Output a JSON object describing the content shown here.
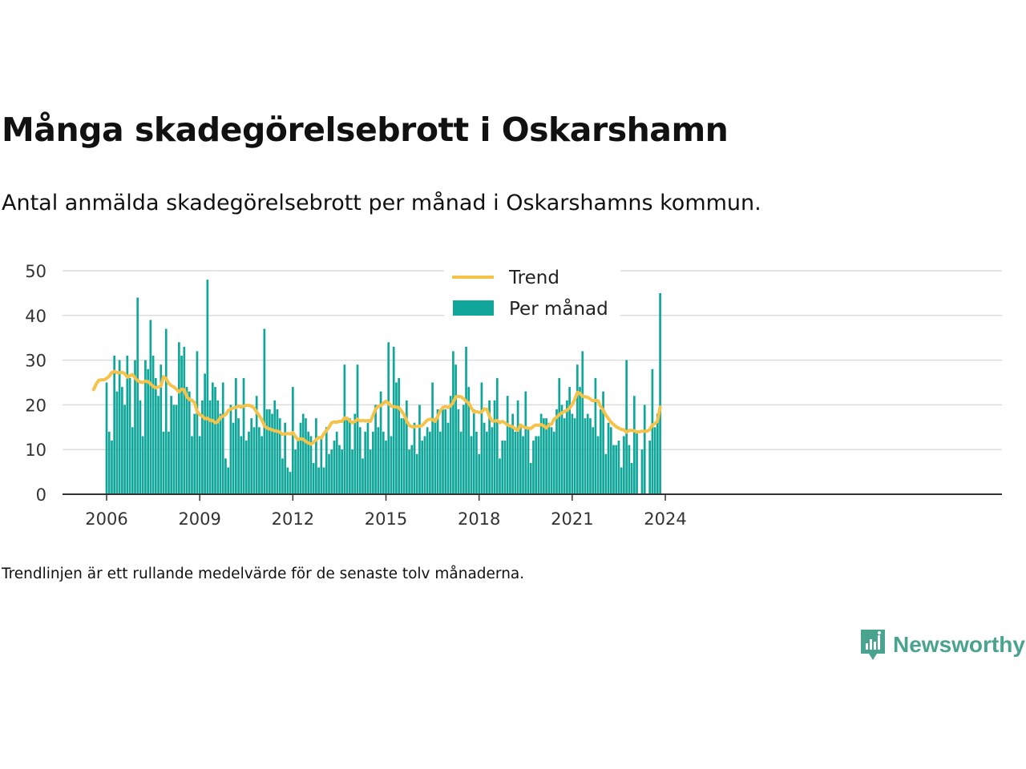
{
  "title": "Många skadegörelsebrott i Oskarshamn",
  "subtitle": "Antal anmälda skadegörelsebrott per månad i Oskarshamns kommun.",
  "note": "Trendlinjen är ett rullande medelvärde för de senaste tolv månaderna.",
  "brand": {
    "name": "Newsworthy",
    "color": "#4aa38f",
    "icon": "newsworthy-logo-icon"
  },
  "colors": {
    "bars": "#10a79a",
    "trend": "#f5c24a",
    "grid": "#dcdcdc",
    "axis": "#333333"
  },
  "chart_data": {
    "type": "bar",
    "x_start": "2006-01",
    "x_frequency": "monthly",
    "ylim": [
      0,
      50
    ],
    "yticks": [
      0,
      10,
      20,
      30,
      40,
      50
    ],
    "xticks": [
      "2006",
      "2009",
      "2012",
      "2015",
      "2018",
      "2021",
      "2024"
    ],
    "grid": true,
    "legend_position": "top-center",
    "series": [
      {
        "name": "Per månad",
        "type": "bar",
        "values": [
          25,
          14,
          12,
          31,
          23,
          30,
          24,
          20,
          31,
          26,
          15,
          30,
          44,
          21,
          13,
          30,
          28,
          39,
          31,
          26,
          22,
          29,
          14,
          37,
          14,
          22,
          20,
          20,
          34,
          31,
          33,
          24,
          23,
          13,
          18,
          32,
          13,
          21,
          27,
          48,
          21,
          25,
          24,
          21,
          18,
          25,
          8,
          6,
          20,
          16,
          26,
          17,
          13,
          26,
          12,
          14,
          17,
          15,
          22,
          15,
          13,
          37,
          19,
          19,
          18,
          21,
          19,
          17,
          8,
          16,
          6,
          5,
          24,
          10,
          12,
          16,
          18,
          17,
          14,
          13,
          7,
          17,
          6,
          13,
          6,
          15,
          9,
          10,
          12,
          14,
          11,
          10,
          29,
          17,
          17,
          10,
          18,
          29,
          15,
          8,
          14,
          16,
          10,
          14,
          20,
          15,
          23,
          14,
          12,
          34,
          13,
          33,
          25,
          26,
          17,
          17,
          21,
          10,
          11,
          16,
          9,
          20,
          12,
          13,
          15,
          14,
          25,
          17,
          19,
          14,
          19,
          19,
          16,
          22,
          32,
          29,
          19,
          14,
          20,
          33,
          24,
          13,
          19,
          14,
          9,
          25,
          16,
          14,
          21,
          15,
          21,
          26,
          8,
          12,
          12,
          22,
          15,
          18,
          14,
          21,
          15,
          13,
          23,
          15,
          7,
          12,
          13,
          13,
          18,
          17,
          17,
          16,
          15,
          14,
          19,
          26,
          20,
          17,
          21,
          24,
          18,
          17,
          29,
          24,
          32,
          17,
          18,
          17,
          15,
          26,
          13,
          19,
          23,
          9,
          16,
          15,
          11,
          11,
          12,
          6,
          13,
          30,
          11,
          7,
          22,
          14,
          0,
          10,
          20,
          0,
          12,
          28,
          15,
          18,
          45
        ]
      },
      {
        "name": "Trend",
        "type": "line",
        "values": [
          23.4,
          24.7,
          25.5,
          25.6,
          25.6,
          25.9,
          26.4,
          27.2,
          27.5,
          27.2,
          27.2,
          27.3,
          27.0,
          26.2,
          26.5,
          26.8,
          26.0,
          25.4,
          25.1,
          25.0,
          25.3,
          25.2,
          24.7,
          24.1,
          23.8,
          24.0,
          24.2,
          26.3,
          25.9,
          24.8,
          24.3,
          24.0,
          23.5,
          22.9,
          23.5,
          23.4,
          21.8,
          21.2,
          21.0,
          20.5,
          18.5,
          17.8,
          17.5,
          16.9,
          17.0,
          16.5,
          16.5,
          16.0,
          16.2,
          17.2,
          17.5,
          17.8,
          18.7,
          19.1,
          19.3,
          19.4,
          19.8,
          19.5,
          19.7,
          19.9,
          19.9,
          19.7,
          19.3,
          18.4,
          17.6,
          16.7,
          15.3,
          14.8,
          14.6,
          14.4,
          14.2,
          14.1,
          13.9,
          13.4,
          13.5,
          13.6,
          13.5,
          13.8,
          12.9,
          12.2,
          12.4,
          12.3,
          11.8,
          11.5,
          11.2,
          11.6,
          12.2,
          12.7,
          12.6,
          13.5,
          14.3,
          15.0,
          16.0,
          16.2,
          16.1,
          16.3,
          16.3,
          17.1,
          17.0,
          16.4,
          16.0,
          16.3,
          16.8,
          16.4,
          16.5,
          16.4,
          16.5,
          16.3,
          17.6,
          19.0,
          19.7,
          19.8,
          20.4,
          20.8,
          20.4,
          19.7,
          19.6,
          19.5,
          19.4,
          18.6,
          17.8,
          16.4,
          15.4,
          15.1,
          15.1,
          15.2,
          15.2,
          15.4,
          16.0,
          16.6,
          16.8,
          16.7,
          16.3,
          17.4,
          18.7,
          19.4,
          19.6,
          19.4,
          19.8,
          20.6,
          21.8,
          21.9,
          21.8,
          21.4,
          20.8,
          20.4,
          19.3,
          18.4,
          18.5,
          18.3,
          18.4,
          19.1,
          19.0,
          17.4,
          16.4,
          16.4,
          16.5,
          16.0,
          16.3,
          16.0,
          15.5,
          15.3,
          15.1,
          14.6,
          14.3,
          15.5,
          15.1,
          14.9,
          14.8,
          14.7,
          15.2,
          15.5,
          15.4,
          15.6,
          15.3,
          14.8,
          15.5,
          15.7,
          16.8,
          17.2,
          17.8,
          18.2,
          18.5,
          18.8,
          19.3,
          20.1,
          21.2,
          22.8,
          22.6,
          21.9,
          21.8,
          21.7,
          21.3,
          20.9,
          21.0,
          20.9,
          19.6,
          18.8,
          17.7,
          16.9,
          16.1,
          15.6,
          15.1,
          14.8,
          14.5,
          14.4,
          13.9,
          14.3,
          14.3,
          14.2,
          13.9,
          14.0,
          14.1,
          14.1,
          14.1,
          14.5,
          15.5,
          15.8,
          16.4,
          19.5
        ]
      }
    ]
  }
}
